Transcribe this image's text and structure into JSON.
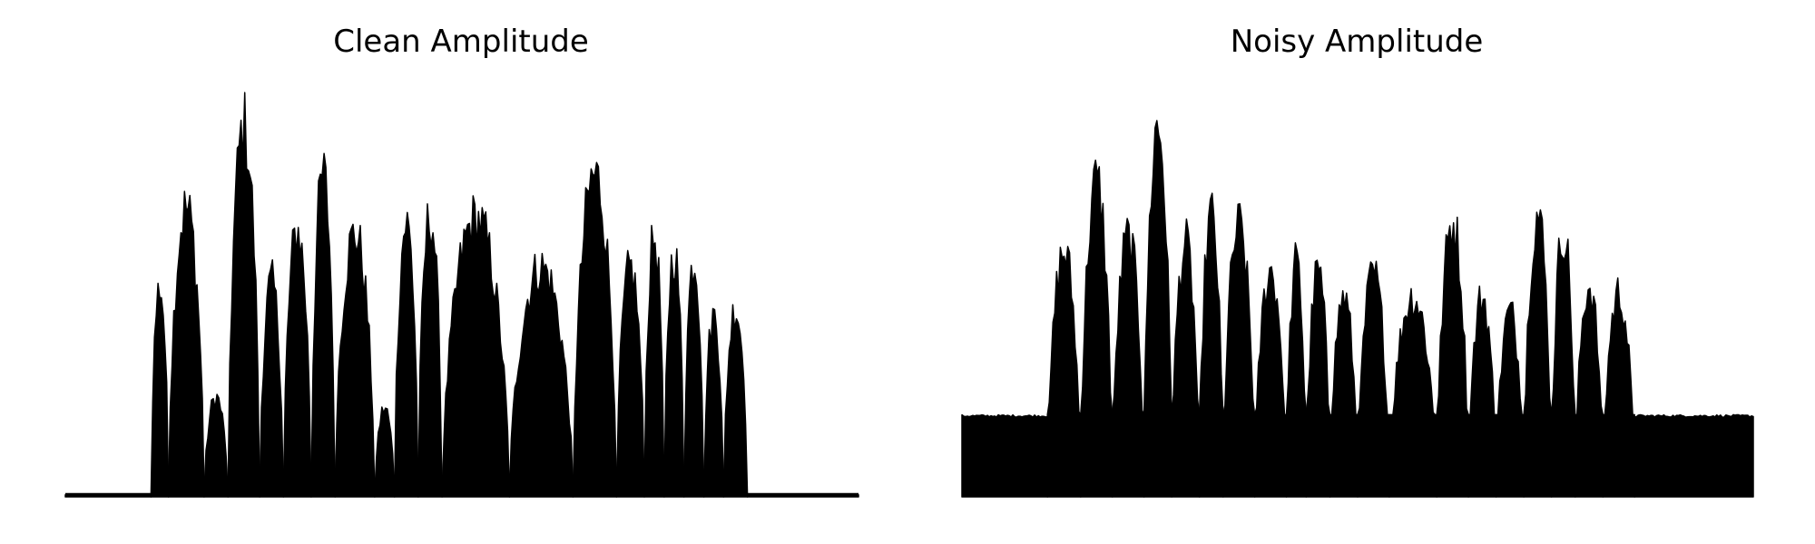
{
  "figure": {
    "background": "#ffffff",
    "ink_color": "#000000"
  },
  "chart_data": [
    {
      "type": "area",
      "title": "Clean Amplitude",
      "xlabel": "",
      "ylabel": "",
      "axes_visible": false,
      "grid": false,
      "legend": "none",
      "xlim": [
        0,
        1
      ],
      "ylim": [
        0,
        1
      ],
      "baseline": 0.005,
      "segments": [
        {
          "x": [
            0.0,
            0.108
          ],
          "level": 0.005,
          "kind": "flat"
        },
        {
          "x": [
            0.108,
            0.13
          ],
          "peak": 0.57,
          "kind": "burst"
        },
        {
          "x": [
            0.13,
            0.175
          ],
          "peak": 0.78,
          "kind": "burst"
        },
        {
          "x": [
            0.175,
            0.205
          ],
          "peak": 0.27,
          "kind": "burst"
        },
        {
          "x": [
            0.205,
            0.245
          ],
          "peak": 1.0,
          "kind": "burst"
        },
        {
          "x": [
            0.245,
            0.275
          ],
          "peak": 0.58,
          "kind": "burst"
        },
        {
          "x": [
            0.275,
            0.31
          ],
          "peak": 0.72,
          "kind": "burst"
        },
        {
          "x": [
            0.31,
            0.34
          ],
          "peak": 0.87,
          "kind": "burst"
        },
        {
          "x": [
            0.34,
            0.39
          ],
          "peak": 0.71,
          "kind": "burst"
        },
        {
          "x": [
            0.39,
            0.415
          ],
          "peak": 0.24,
          "kind": "burst"
        },
        {
          "x": [
            0.415,
            0.445
          ],
          "peak": 0.74,
          "kind": "burst"
        },
        {
          "x": [
            0.445,
            0.475
          ],
          "peak": 0.76,
          "kind": "burst"
        },
        {
          "x": [
            0.475,
            0.56
          ],
          "peak": 0.75,
          "kind": "burst"
        },
        {
          "x": [
            0.56,
            0.64
          ],
          "peak": 0.62,
          "kind": "burst"
        },
        {
          "x": [
            0.64,
            0.695
          ],
          "peak": 0.87,
          "kind": "burst"
        },
        {
          "x": [
            0.695,
            0.73
          ],
          "peak": 0.62,
          "kind": "burst"
        },
        {
          "x": [
            0.73,
            0.755
          ],
          "peak": 0.7,
          "kind": "burst"
        },
        {
          "x": [
            0.755,
            0.78
          ],
          "peak": 0.66,
          "kind": "burst"
        },
        {
          "x": [
            0.78,
            0.805
          ],
          "peak": 0.64,
          "kind": "burst"
        },
        {
          "x": [
            0.805,
            0.83
          ],
          "peak": 0.49,
          "kind": "burst"
        },
        {
          "x": [
            0.83,
            0.86
          ],
          "peak": 0.51,
          "kind": "burst"
        },
        {
          "x": [
            0.86,
            1.0
          ],
          "level": 0.005,
          "kind": "flat"
        }
      ]
    },
    {
      "type": "area",
      "title": "Noisy Amplitude",
      "xlabel": "",
      "ylabel": "",
      "axes_visible": false,
      "grid": false,
      "legend": "none",
      "xlim": [
        0,
        1
      ],
      "ylim": [
        0,
        1
      ],
      "baseline": 0.2,
      "segments": [
        {
          "x": [
            0.0,
            0.108
          ],
          "level": 0.2,
          "kind": "noise-floor"
        },
        {
          "x": [
            0.108,
            0.15
          ],
          "peak": 0.66,
          "kind": "burst"
        },
        {
          "x": [
            0.15,
            0.19
          ],
          "peak": 0.85,
          "kind": "burst"
        },
        {
          "x": [
            0.19,
            0.23
          ],
          "peak": 0.7,
          "kind": "burst"
        },
        {
          "x": [
            0.23,
            0.265
          ],
          "peak": 1.0,
          "kind": "burst"
        },
        {
          "x": [
            0.265,
            0.3
          ],
          "peak": 0.68,
          "kind": "burst"
        },
        {
          "x": [
            0.3,
            0.33
          ],
          "peak": 0.76,
          "kind": "burst"
        },
        {
          "x": [
            0.33,
            0.37
          ],
          "peak": 0.73,
          "kind": "burst"
        },
        {
          "x": [
            0.37,
            0.41
          ],
          "peak": 0.61,
          "kind": "burst"
        },
        {
          "x": [
            0.41,
            0.435
          ],
          "peak": 0.63,
          "kind": "burst"
        },
        {
          "x": [
            0.435,
            0.465
          ],
          "peak": 0.61,
          "kind": "burst"
        },
        {
          "x": [
            0.465,
            0.5
          ],
          "peak": 0.54,
          "kind": "burst"
        },
        {
          "x": [
            0.5,
            0.54
          ],
          "peak": 0.6,
          "kind": "burst"
        },
        {
          "x": [
            0.54,
            0.6
          ],
          "peak": 0.54,
          "kind": "burst"
        },
        {
          "x": [
            0.6,
            0.64
          ],
          "peak": 0.74,
          "kind": "burst"
        },
        {
          "x": [
            0.64,
            0.675
          ],
          "peak": 0.54,
          "kind": "burst"
        },
        {
          "x": [
            0.675,
            0.71
          ],
          "peak": 0.5,
          "kind": "burst"
        },
        {
          "x": [
            0.71,
            0.745
          ],
          "peak": 0.76,
          "kind": "burst"
        },
        {
          "x": [
            0.745,
            0.775
          ],
          "peak": 0.72,
          "kind": "burst"
        },
        {
          "x": [
            0.775,
            0.81
          ],
          "peak": 0.57,
          "kind": "burst"
        },
        {
          "x": [
            0.81,
            0.85
          ],
          "peak": 0.55,
          "kind": "burst"
        },
        {
          "x": [
            0.85,
            1.0
          ],
          "level": 0.2,
          "kind": "noise-floor"
        }
      ]
    }
  ]
}
